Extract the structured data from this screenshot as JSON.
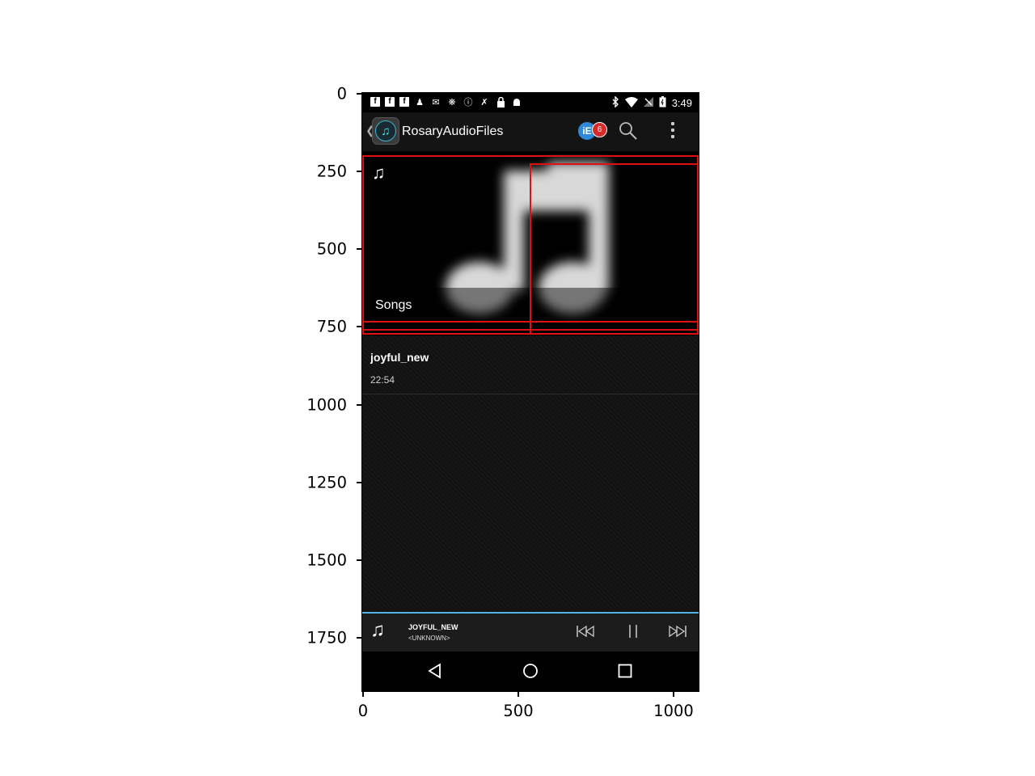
{
  "axes": {
    "y_ticks": [
      {
        "value": 0,
        "label": "0"
      },
      {
        "value": 250,
        "label": "250"
      },
      {
        "value": 500,
        "label": "500"
      },
      {
        "value": 750,
        "label": "750"
      },
      {
        "value": 1000,
        "label": "1000"
      },
      {
        "value": 1250,
        "label": "1250"
      },
      {
        "value": 1500,
        "label": "1500"
      },
      {
        "value": 1750,
        "label": "1750"
      }
    ],
    "x_ticks": [
      {
        "value": 0,
        "label": "0"
      },
      {
        "value": 500,
        "label": "500"
      },
      {
        "value": 1000,
        "label": "1000"
      }
    ]
  },
  "statusbar": {
    "time": "3:49",
    "icons": [
      "facebook-icon",
      "facebook-icon",
      "facebook-icon",
      "person-icon",
      "message-icon",
      "settings-icon",
      "info-icon",
      "no-signal-icon",
      "lock-icon",
      "android-icon"
    ],
    "right_icons": [
      "bluetooth-icon",
      "wifi-icon",
      "cell-signal-icon",
      "battery-icon"
    ]
  },
  "actionbar": {
    "title": "RosaryAudioFiles",
    "badge_count": "6",
    "ie_label": "iE"
  },
  "hero": {
    "label": "Songs"
  },
  "list": {
    "items": [
      {
        "title": "joyful_new",
        "duration": "22:54"
      }
    ]
  },
  "now_playing": {
    "title": "JOYFUL_NEW",
    "artist": "<UNKNOWN>"
  },
  "colors": {
    "accent_blue": "#4fb3e6",
    "highlight_red": "#e01010",
    "badge_red": "#d82a2a"
  }
}
